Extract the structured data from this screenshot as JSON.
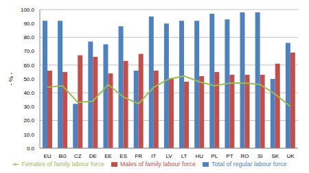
{
  "chart_data": {
    "type": "bar",
    "y_label": "- % -",
    "categories": [
      "EU",
      "BG",
      "CZ",
      "DE",
      "EE",
      "ES",
      "FR",
      "IT",
      "LV",
      "LT",
      "HU",
      "PL",
      "PT",
      "RO",
      "SI",
      "SK",
      "UK"
    ],
    "series": [
      {
        "name": "Total of regular labour force",
        "color": "#4F81BD",
        "values": [
          92,
          92,
          32,
          77,
          75,
          88,
          56,
          95,
          90,
          92,
          92,
          97,
          93,
          98,
          98,
          50,
          76
        ]
      },
      {
        "name": "Males of family labour force",
        "color": "#C0504D",
        "values": [
          56,
          55,
          67,
          66,
          54,
          63,
          68,
          56,
          50,
          48,
          52,
          55,
          53,
          53,
          53,
          61,
          69
        ]
      },
      {
        "name": "Females of family labour force",
        "color": "#9BBB59",
        "type": "line",
        "marker": "none",
        "values": [
          44,
          45,
          33,
          34,
          46,
          37,
          32,
          44,
          50,
          52,
          48,
          45,
          47,
          47,
          46,
          39,
          30
        ]
      }
    ],
    "ylim": [
      0,
      100
    ],
    "yticks": [
      {
        "value": 0,
        "label": "0.0"
      },
      {
        "value": 10,
        "label": "10.0"
      },
      {
        "value": 20,
        "label": "20.0"
      },
      {
        "value": 30,
        "label": "30.0"
      },
      {
        "value": 40,
        "label": "40.0"
      },
      {
        "value": 50,
        "label": "50.0"
      },
      {
        "value": 60,
        "label": "60.0"
      },
      {
        "value": 70,
        "label": "70.0"
      },
      {
        "value": 80,
        "label": "80.0"
      },
      {
        "value": 90,
        "label": "90.0"
      },
      {
        "value": 100,
        "label": "100.0"
      }
    ],
    "grid": true,
    "legend": "bottom"
  }
}
